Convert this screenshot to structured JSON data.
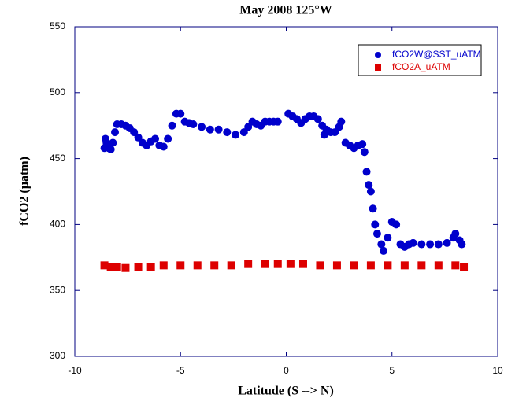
{
  "chart_data": {
    "type": "scatter",
    "title": "May 2008 125°W",
    "xlabel": "Latitude (S --> N)",
    "ylabel": "fCO2 (µatm)",
    "xlim": [
      -10,
      10
    ],
    "xticks": [
      -10,
      -5,
      0,
      5,
      10
    ],
    "ylim": [
      300,
      550
    ],
    "yticks": [
      300,
      350,
      400,
      450,
      500,
      550
    ],
    "legend": "upper right",
    "series": [
      {
        "name": "fCO2W@SST_uATM",
        "color": "#0000cc",
        "marker": "circle",
        "x": [
          -8.6,
          -8.55,
          -8.5,
          -8.4,
          -8.3,
          -8.2,
          -8.1,
          -8.0,
          -7.8,
          -7.6,
          -7.4,
          -7.2,
          -7.0,
          -6.8,
          -6.6,
          -6.4,
          -6.2,
          -6.0,
          -5.8,
          -5.6,
          -5.4,
          -5.2,
          -5.0,
          -4.8,
          -4.6,
          -4.4,
          -4.0,
          -3.6,
          -3.2,
          -2.8,
          -2.4,
          -2.0,
          -1.8,
          -1.6,
          -1.4,
          -1.2,
          -1.0,
          -0.8,
          -0.6,
          -0.4,
          0.1,
          0.3,
          0.5,
          0.7,
          0.9,
          1.1,
          1.3,
          1.5,
          1.7,
          1.8,
          1.9,
          2.1,
          2.3,
          2.5,
          2.6,
          2.8,
          3.0,
          3.2,
          3.4,
          3.6,
          3.7,
          3.8,
          3.9,
          4.0,
          4.1,
          4.2,
          4.3,
          4.5,
          4.6,
          4.8,
          5.0,
          5.2,
          5.4,
          5.6,
          5.8,
          6.0,
          6.4,
          6.8,
          7.2,
          7.6,
          7.9,
          8.0,
          8.2,
          8.3
        ],
        "values": [
          458,
          465,
          462,
          458,
          457,
          462,
          470,
          476,
          476,
          475,
          473,
          470,
          466,
          462,
          460,
          463,
          465,
          460,
          459,
          465,
          475,
          484,
          484,
          478,
          477,
          476,
          474,
          472,
          472,
          470,
          468,
          470,
          474,
          478,
          476,
          475,
          478,
          478,
          478,
          478,
          484,
          482,
          480,
          477,
          480,
          482,
          482,
          480,
          475,
          468,
          472,
          470,
          470,
          474,
          478,
          462,
          460,
          458,
          460,
          461,
          455,
          440,
          430,
          425,
          412,
          400,
          393,
          385,
          380,
          390,
          402,
          400,
          385,
          383,
          385,
          386,
          385,
          385,
          385,
          386,
          390,
          393,
          388,
          385
        ]
      },
      {
        "name": "fCO2A_uATM",
        "color": "#dd0000",
        "marker": "square",
        "x": [
          -8.6,
          -8.3,
          -8.0,
          -7.6,
          -7.0,
          -6.4,
          -5.8,
          -5.0,
          -4.2,
          -3.4,
          -2.6,
          -1.8,
          -1.0,
          -0.4,
          0.2,
          0.8,
          1.6,
          2.4,
          3.2,
          4.0,
          4.8,
          5.6,
          6.4,
          7.2,
          8.0,
          8.4
        ],
        "values": [
          369,
          368,
          368,
          367,
          368,
          368,
          369,
          369,
          369,
          369,
          369,
          370,
          370,
          370,
          370,
          370,
          369,
          369,
          369,
          369,
          369,
          369,
          369,
          369,
          369,
          368
        ]
      }
    ]
  }
}
